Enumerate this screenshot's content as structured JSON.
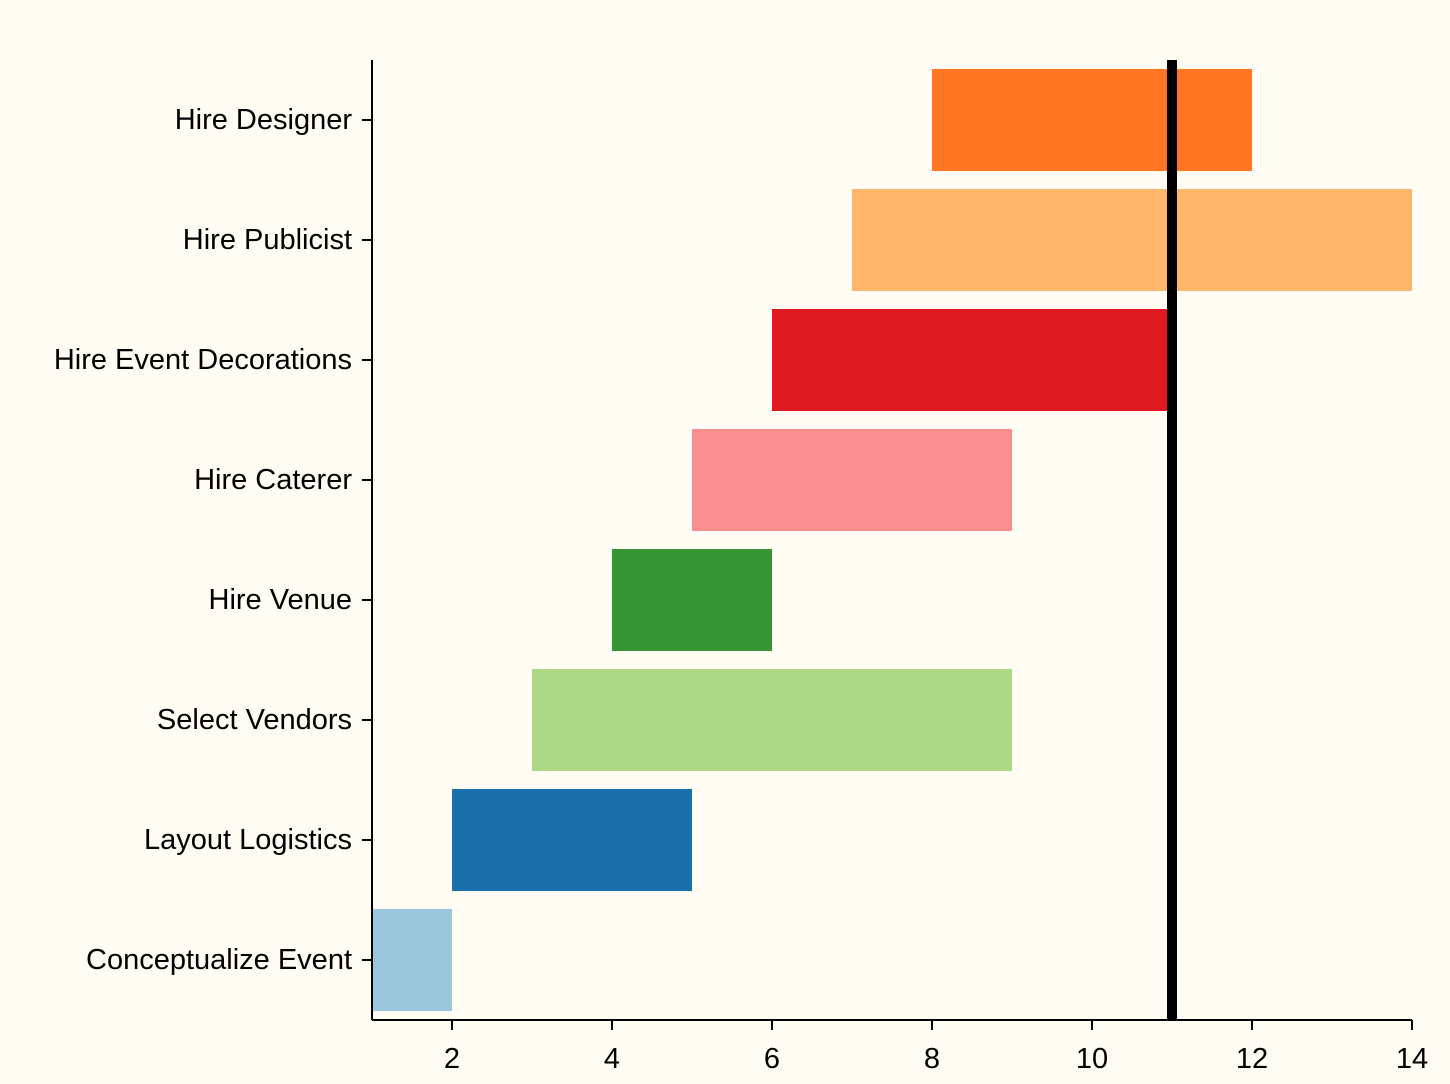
{
  "chart_data": {
    "type": "gantt",
    "tasks": [
      {
        "name": "Conceptualize Event",
        "start": 1,
        "end": 2,
        "color": "#9BC7DD"
      },
      {
        "name": "Layout Logistics",
        "start": 2,
        "end": 5,
        "color": "#1A70AA"
      },
      {
        "name": "Select Vendors",
        "start": 3,
        "end": 9,
        "color": "#ADD987"
      },
      {
        "name": "Hire Venue",
        "start": 4,
        "end": 6,
        "color": "#359534"
      },
      {
        "name": "Hire Caterer",
        "start": 5,
        "end": 9,
        "color": "#F88F8E"
      },
      {
        "name": "Hire Event Decorations",
        "start": 6,
        "end": 11,
        "color": "#DD1A21"
      },
      {
        "name": "Hire Publicist",
        "start": 7,
        "end": 14,
        "color": "#FEB66D"
      },
      {
        "name": "Hire Designer",
        "start": 8,
        "end": 12,
        "color": "#FF7522"
      }
    ],
    "xlim": [
      1,
      14
    ],
    "xticks": [
      2,
      4,
      6,
      8,
      10,
      12,
      14
    ],
    "current_marker": 11,
    "grid": false,
    "background": "#FFFCF4"
  }
}
